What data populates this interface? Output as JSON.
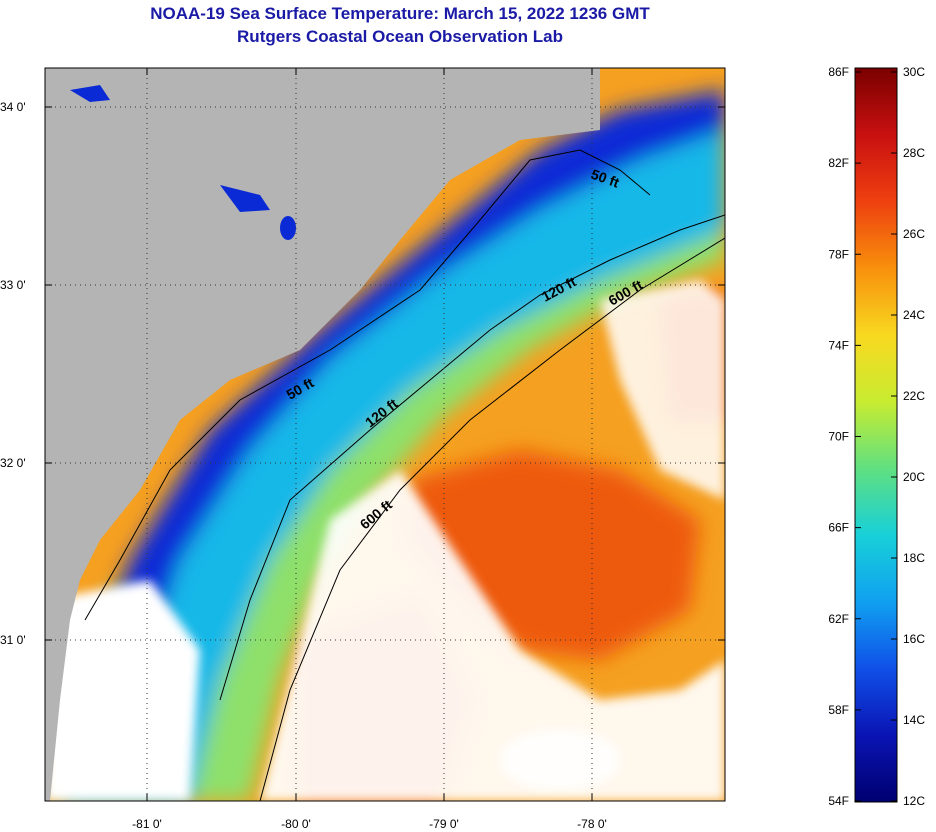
{
  "title": {
    "line1": "NOAA-19 Sea Surface Temperature:  March 15, 2022 1236 GMT",
    "line2": "Rutgers Coastal Ocean Observation Lab"
  },
  "map": {
    "lat_ticks": [
      "34 0'",
      "33 0'",
      "32 0'",
      "31 0'"
    ],
    "lon_ticks": [
      "-81 0'",
      "-80 0'",
      "-79 0'",
      "-78 0'"
    ],
    "contour_labels": [
      "50 ft",
      "50 ft",
      "120 ft",
      "120 ft",
      "600 ft",
      "600 ft"
    ],
    "colors": {
      "land": "#b4b4b4",
      "cloud": "#ffffff",
      "cold": "#0a2ad6",
      "cool": "#18b8e8",
      "mild": "#8ee06a",
      "warm": "#f5a020",
      "hot": "#ee5a10"
    }
  },
  "colorbar": {
    "fahrenheit": [
      "86F",
      "82F",
      "78F",
      "74F",
      "70F",
      "66F",
      "62F",
      "58F",
      "54F"
    ],
    "celsius": [
      "30C",
      "28C",
      "26C",
      "24C",
      "22C",
      "20C",
      "18C",
      "16C",
      "14C",
      "12C"
    ],
    "gradient": [
      "#7a0000",
      "#c81010",
      "#ee4010",
      "#f8900c",
      "#f8d820",
      "#c8ec30",
      "#60e080",
      "#18d0d8",
      "#10a0f0",
      "#1050e8",
      "#0a14b4",
      "#000070"
    ]
  }
}
